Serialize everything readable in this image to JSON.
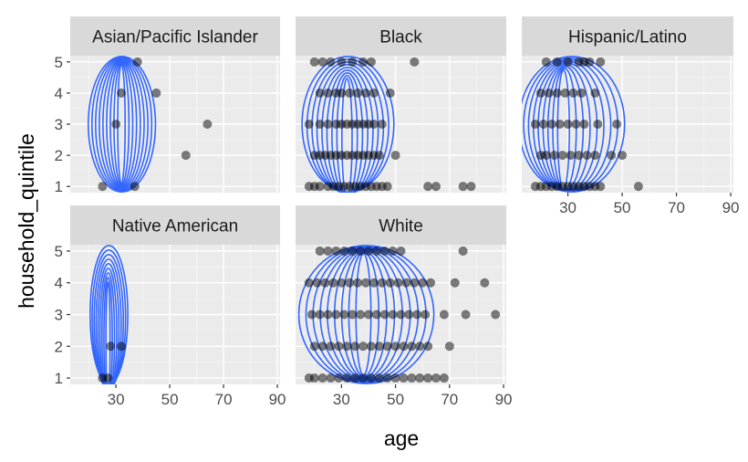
{
  "chart_data": {
    "type": "scatter",
    "layout": "faceted scatter with 2D density contours",
    "xlabel": "age",
    "ylabel": "household_quintile",
    "x_ticks": [
      30,
      50,
      70,
      90
    ],
    "y_ticks": [
      1,
      2,
      3,
      4,
      5
    ],
    "xlim": [
      13,
      91
    ],
    "ylim": [
      0.8,
      5.2
    ],
    "grid": true,
    "legend": "none",
    "colors": {
      "panel_bg": "#ebebeb",
      "grid_major": "#ffffff",
      "strip_bg": "#d9d9d9",
      "points": "#000000",
      "contour": "#3366ff"
    },
    "facets": [
      {
        "name": "Asian/Pacific Islander",
        "points": [
          [
            25,
            1
          ],
          [
            37,
            1
          ],
          [
            38,
            5
          ],
          [
            30,
            3
          ],
          [
            45,
            4
          ],
          [
            64,
            3
          ],
          [
            56,
            2
          ],
          [
            32,
            4
          ]
        ],
        "contour_center": [
          32,
          3
        ],
        "contour_x_range": [
          20,
          45
        ]
      },
      {
        "name": "Black",
        "points": [
          [
            18,
            1
          ],
          [
            20,
            1
          ],
          [
            22,
            1
          ],
          [
            25,
            1
          ],
          [
            27,
            1
          ],
          [
            29,
            1
          ],
          [
            31,
            1
          ],
          [
            33,
            1
          ],
          [
            35,
            1
          ],
          [
            37,
            1
          ],
          [
            39,
            1
          ],
          [
            41,
            1
          ],
          [
            43,
            1
          ],
          [
            45,
            1
          ],
          [
            47,
            1
          ],
          [
            62,
            1
          ],
          [
            65,
            1
          ],
          [
            75,
            1
          ],
          [
            78,
            1
          ],
          [
            20,
            2
          ],
          [
            22,
            2
          ],
          [
            24,
            2
          ],
          [
            26,
            2
          ],
          [
            28,
            2
          ],
          [
            30,
            2
          ],
          [
            32,
            2
          ],
          [
            34,
            2
          ],
          [
            36,
            2
          ],
          [
            38,
            2
          ],
          [
            40,
            2
          ],
          [
            42,
            2
          ],
          [
            44,
            2
          ],
          [
            50,
            2
          ],
          [
            18,
            3
          ],
          [
            22,
            3
          ],
          [
            25,
            3
          ],
          [
            28,
            3
          ],
          [
            30,
            3
          ],
          [
            32,
            3
          ],
          [
            34,
            3
          ],
          [
            36,
            3
          ],
          [
            38,
            3
          ],
          [
            40,
            3
          ],
          [
            42,
            3
          ],
          [
            45,
            3
          ],
          [
            22,
            4
          ],
          [
            25,
            4
          ],
          [
            28,
            4
          ],
          [
            30,
            4
          ],
          [
            33,
            4
          ],
          [
            36,
            4
          ],
          [
            39,
            4
          ],
          [
            42,
            4
          ],
          [
            48,
            4
          ],
          [
            20,
            5
          ],
          [
            23,
            5
          ],
          [
            26,
            5
          ],
          [
            30,
            5
          ],
          [
            34,
            5
          ],
          [
            38,
            5
          ],
          [
            41,
            5
          ],
          [
            57,
            5
          ]
        ],
        "contour_center": [
          32,
          2.5
        ],
        "contour_x_range": [
          16,
          50
        ]
      },
      {
        "name": "Hispanic/Latino",
        "points": [
          [
            18,
            1
          ],
          [
            20,
            1
          ],
          [
            22,
            1
          ],
          [
            24,
            1
          ],
          [
            26,
            1
          ],
          [
            28,
            1
          ],
          [
            30,
            1
          ],
          [
            32,
            1
          ],
          [
            34,
            1
          ],
          [
            36,
            1
          ],
          [
            38,
            1
          ],
          [
            40,
            1
          ],
          [
            42,
            1
          ],
          [
            56,
            1
          ],
          [
            20,
            2
          ],
          [
            22,
            2
          ],
          [
            25,
            2
          ],
          [
            28,
            2
          ],
          [
            31,
            2
          ],
          [
            34,
            2
          ],
          [
            37,
            2
          ],
          [
            40,
            2
          ],
          [
            46,
            2
          ],
          [
            50,
            2
          ],
          [
            18,
            3
          ],
          [
            21,
            3
          ],
          [
            24,
            3
          ],
          [
            27,
            3
          ],
          [
            30,
            3
          ],
          [
            33,
            3
          ],
          [
            36,
            3
          ],
          [
            41,
            3
          ],
          [
            48,
            3
          ],
          [
            20,
            4
          ],
          [
            23,
            4
          ],
          [
            26,
            4
          ],
          [
            29,
            4
          ],
          [
            32,
            4
          ],
          [
            35,
            4
          ],
          [
            40,
            4
          ],
          [
            22,
            5
          ],
          [
            26,
            5
          ],
          [
            30,
            5
          ],
          [
            34,
            5
          ],
          [
            36,
            5
          ],
          [
            38,
            5
          ],
          [
            42,
            5
          ]
        ],
        "contour_center": [
          28,
          2.8
        ],
        "contour_x_range": [
          17,
          56
        ]
      },
      {
        "name": "Native American",
        "points": [
          [
            25,
            1
          ],
          [
            27,
            1
          ],
          [
            28,
            2
          ],
          [
            32,
            2
          ]
        ],
        "contour_center": [
          27,
          2
        ],
        "contour_x_range": [
          21,
          35
        ]
      },
      {
        "name": "White",
        "points": [
          [
            18,
            1
          ],
          [
            20,
            1
          ],
          [
            23,
            1
          ],
          [
            26,
            1
          ],
          [
            29,
            1
          ],
          [
            32,
            1
          ],
          [
            35,
            1
          ],
          [
            38,
            1
          ],
          [
            41,
            1
          ],
          [
            44,
            1
          ],
          [
            47,
            1
          ],
          [
            50,
            1
          ],
          [
            53,
            1
          ],
          [
            56,
            1
          ],
          [
            59,
            1
          ],
          [
            62,
            1
          ],
          [
            65,
            1
          ],
          [
            68,
            1
          ],
          [
            20,
            2
          ],
          [
            23,
            2
          ],
          [
            26,
            2
          ],
          [
            29,
            2
          ],
          [
            32,
            2
          ],
          [
            35,
            2
          ],
          [
            38,
            2
          ],
          [
            41,
            2
          ],
          [
            44,
            2
          ],
          [
            47,
            2
          ],
          [
            50,
            2
          ],
          [
            53,
            2
          ],
          [
            56,
            2
          ],
          [
            59,
            2
          ],
          [
            62,
            2
          ],
          [
            70,
            2
          ],
          [
            19,
            3
          ],
          [
            22,
            3
          ],
          [
            25,
            3
          ],
          [
            28,
            3
          ],
          [
            31,
            3
          ],
          [
            34,
            3
          ],
          [
            37,
            3
          ],
          [
            40,
            3
          ],
          [
            43,
            3
          ],
          [
            46,
            3
          ],
          [
            49,
            3
          ],
          [
            52,
            3
          ],
          [
            55,
            3
          ],
          [
            58,
            3
          ],
          [
            61,
            3
          ],
          [
            68,
            3
          ],
          [
            76,
            3
          ],
          [
            87,
            3
          ],
          [
            18,
            4
          ],
          [
            21,
            4
          ],
          [
            24,
            4
          ],
          [
            27,
            4
          ],
          [
            30,
            4
          ],
          [
            33,
            4
          ],
          [
            36,
            4
          ],
          [
            39,
            4
          ],
          [
            42,
            4
          ],
          [
            45,
            4
          ],
          [
            48,
            4
          ],
          [
            51,
            4
          ],
          [
            54,
            4
          ],
          [
            57,
            4
          ],
          [
            60,
            4
          ],
          [
            63,
            4
          ],
          [
            72,
            4
          ],
          [
            83,
            4
          ],
          [
            22,
            5
          ],
          [
            25,
            5
          ],
          [
            28,
            5
          ],
          [
            31,
            5
          ],
          [
            34,
            5
          ],
          [
            37,
            5
          ],
          [
            40,
            5
          ],
          [
            43,
            5
          ],
          [
            46,
            5
          ],
          [
            49,
            5
          ],
          [
            52,
            5
          ],
          [
            75,
            5
          ]
        ],
        "contour_center": [
          38,
          3
        ],
        "contour_x_range": [
          16,
          66
        ]
      }
    ]
  }
}
